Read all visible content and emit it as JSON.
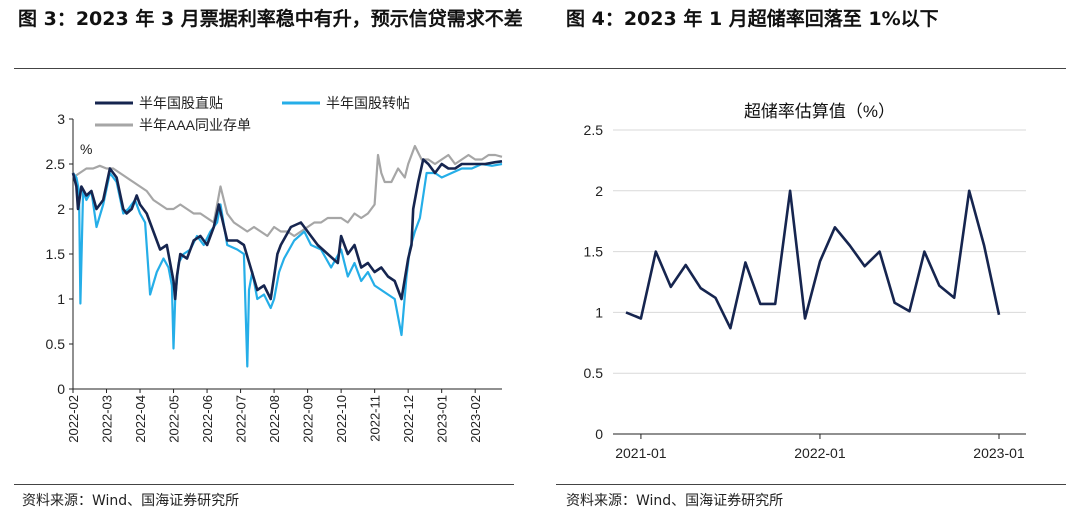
{
  "figure_left": {
    "title": "图 3：2023 年 3 月票据利率稳中有升，预示信贷需求不差",
    "source": "资料来源：Wind、国海证券研究所"
  },
  "figure_right": {
    "title": "图 4：2023 年 1 月超储率回落至 1%以下",
    "source": "资料来源：Wind、国海证券研究所"
  },
  "chart_data": [
    {
      "type": "line",
      "title": "",
      "ylabel": "%",
      "ylim": [
        0,
        3
      ],
      "yticks": [
        "0",
        "0.5",
        "1",
        "1.5",
        "2",
        "2.5",
        "3"
      ],
      "categories": [
        "2022-02",
        "2022-03",
        "2022-04",
        "2022-05",
        "2022-06",
        "2022-07",
        "2022-08",
        "2022-09",
        "2022-10",
        "2022-11",
        "2022-12",
        "2023-01",
        "2023-02"
      ],
      "x_range": [
        0,
        12.8
      ],
      "legend": "top",
      "series": [
        {
          "name": "半年国股直贴",
          "color": "#16254f",
          "x": [
            0,
            0.1,
            0.15,
            0.25,
            0.4,
            0.55,
            0.7,
            0.9,
            1.1,
            1.3,
            1.5,
            1.6,
            1.75,
            1.9,
            2.0,
            2.2,
            2.4,
            2.6,
            2.8,
            3.0,
            3.05,
            3.1,
            3.2,
            3.4,
            3.6,
            3.8,
            4.0,
            4.2,
            4.35,
            4.6,
            4.9,
            5.1,
            5.3,
            5.5,
            5.7,
            5.9,
            6.0,
            6.1,
            6.2,
            6.5,
            6.8,
            7.0,
            7.3,
            7.6,
            7.9,
            8.0,
            8.2,
            8.4,
            8.6,
            8.8,
            9.0,
            9.2,
            9.4,
            9.6,
            9.8,
            10.0,
            10.1,
            10.15,
            10.3,
            10.45,
            10.6,
            10.8,
            11.0,
            11.2,
            11.4,
            11.6,
            11.8,
            12.0,
            12.3,
            12.6,
            12.8
          ],
          "y": [
            2.4,
            2.25,
            2.0,
            2.25,
            2.15,
            2.2,
            2.0,
            2.1,
            2.45,
            2.35,
            2.0,
            1.95,
            2.0,
            2.15,
            2.05,
            1.95,
            1.75,
            1.55,
            1.6,
            1.2,
            1.0,
            1.25,
            1.5,
            1.45,
            1.65,
            1.7,
            1.6,
            1.8,
            2.05,
            1.65,
            1.65,
            1.6,
            1.35,
            1.1,
            1.15,
            1.0,
            1.25,
            1.5,
            1.6,
            1.8,
            1.85,
            1.75,
            1.6,
            1.5,
            1.4,
            1.7,
            1.5,
            1.6,
            1.35,
            1.4,
            1.3,
            1.35,
            1.25,
            1.2,
            1.0,
            1.45,
            1.6,
            2.0,
            2.3,
            2.55,
            2.5,
            2.4,
            2.5,
            2.45,
            2.45,
            2.5,
            2.5,
            2.5,
            2.5,
            2.52,
            2.53
          ]
        },
        {
          "name": "半年国股转帖",
          "color": "#25aee8",
          "x": [
            0,
            0.1,
            0.18,
            0.22,
            0.3,
            0.4,
            0.55,
            0.7,
            0.9,
            1.1,
            1.3,
            1.5,
            1.65,
            1.85,
            2.0,
            2.15,
            2.3,
            2.5,
            2.7,
            2.85,
            2.95,
            3.0,
            3.05,
            3.15,
            3.3,
            3.5,
            3.7,
            3.9,
            4.1,
            4.3,
            4.4,
            4.6,
            4.9,
            5.1,
            5.2,
            5.25,
            5.35,
            5.5,
            5.7,
            5.9,
            6.0,
            6.15,
            6.3,
            6.6,
            6.9,
            7.1,
            7.4,
            7.7,
            8.0,
            8.2,
            8.4,
            8.6,
            8.8,
            9.0,
            9.2,
            9.4,
            9.6,
            9.8,
            9.95,
            10.05,
            10.2,
            10.35,
            10.55,
            10.8,
            11.0,
            11.3,
            11.6,
            11.9,
            12.2,
            12.5,
            12.8
          ],
          "y": [
            2.4,
            2.35,
            2.2,
            0.95,
            2.2,
            2.1,
            2.2,
            1.8,
            2.05,
            2.4,
            2.3,
            1.95,
            2.0,
            2.1,
            1.95,
            1.85,
            1.05,
            1.3,
            1.45,
            1.35,
            1.15,
            0.45,
            1.0,
            1.4,
            1.5,
            1.55,
            1.7,
            1.6,
            1.75,
            1.85,
            2.05,
            1.6,
            1.55,
            1.5,
            0.25,
            1.1,
            1.3,
            1.0,
            1.05,
            0.9,
            1.0,
            1.3,
            1.45,
            1.65,
            1.75,
            1.6,
            1.55,
            1.35,
            1.55,
            1.25,
            1.4,
            1.2,
            1.3,
            1.15,
            1.1,
            1.05,
            1.0,
            0.6,
            1.25,
            1.55,
            1.75,
            1.9,
            2.4,
            2.4,
            2.35,
            2.4,
            2.45,
            2.45,
            2.5,
            2.48,
            2.5
          ]
        },
        {
          "name": "半年AAA同业存单",
          "color": "#a6a6a6",
          "x": [
            0,
            0.2,
            0.4,
            0.6,
            0.8,
            1.0,
            1.2,
            1.4,
            1.6,
            1.8,
            2.0,
            2.2,
            2.4,
            2.6,
            2.8,
            3.0,
            3.2,
            3.4,
            3.6,
            3.8,
            4.0,
            4.2,
            4.4,
            4.6,
            4.8,
            5.0,
            5.2,
            5.4,
            5.6,
            5.8,
            6.0,
            6.2,
            6.4,
            6.6,
            6.8,
            7.0,
            7.2,
            7.4,
            7.6,
            7.8,
            8.0,
            8.2,
            8.4,
            8.6,
            8.8,
            9.0,
            9.1,
            9.2,
            9.3,
            9.5,
            9.7,
            9.9,
            10.0,
            10.2,
            10.4,
            10.6,
            10.8,
            11.0,
            11.2,
            11.4,
            11.6,
            11.8,
            12.0,
            12.2,
            12.4,
            12.6,
            12.8
          ],
          "y": [
            2.35,
            2.4,
            2.45,
            2.45,
            2.48,
            2.45,
            2.45,
            2.4,
            2.35,
            2.3,
            2.25,
            2.2,
            2.1,
            2.05,
            2.0,
            2.0,
            2.05,
            2.0,
            1.95,
            1.95,
            1.9,
            1.85,
            2.25,
            1.95,
            1.85,
            1.8,
            1.75,
            1.8,
            1.75,
            1.7,
            1.8,
            1.75,
            1.75,
            1.7,
            1.75,
            1.8,
            1.85,
            1.85,
            1.9,
            1.9,
            1.9,
            1.85,
            1.95,
            1.9,
            1.95,
            2.05,
            2.6,
            2.4,
            2.3,
            2.3,
            2.45,
            2.35,
            2.5,
            2.7,
            2.55,
            2.55,
            2.5,
            2.55,
            2.6,
            2.5,
            2.55,
            2.6,
            2.55,
            2.55,
            2.6,
            2.6,
            2.58
          ]
        }
      ]
    },
    {
      "type": "line",
      "title": "超储率估算值（%）",
      "ylim": [
        0,
        2.5
      ],
      "yticks": [
        "0",
        "0.5",
        "1",
        "1.5",
        "2",
        "2.5"
      ],
      "xticks": [
        "2021-01",
        "2022-01",
        "2023-01"
      ],
      "series": [
        {
          "name": "超储率估算值",
          "color": "#16254f",
          "x": [
            "2020-12",
            "2021-01",
            "2021-02",
            "2021-03",
            "2021-04",
            "2021-05",
            "2021-06",
            "2021-07",
            "2021-08",
            "2021-09",
            "2021-10",
            "2021-11",
            "2021-12",
            "2022-01",
            "2022-02",
            "2022-03",
            "2022-04",
            "2022-05",
            "2022-06",
            "2022-07",
            "2022-08",
            "2022-09",
            "2022-10",
            "2022-11",
            "2022-12",
            "2023-01"
          ],
          "y": [
            1.0,
            0.95,
            1.5,
            1.21,
            1.39,
            1.2,
            1.12,
            0.87,
            1.41,
            1.07,
            1.07,
            2.0,
            0.95,
            1.42,
            1.7,
            1.55,
            1.38,
            1.5,
            1.08,
            1.01,
            1.5,
            1.22,
            1.12,
            2.0,
            1.55,
            0.98
          ]
        }
      ]
    }
  ]
}
